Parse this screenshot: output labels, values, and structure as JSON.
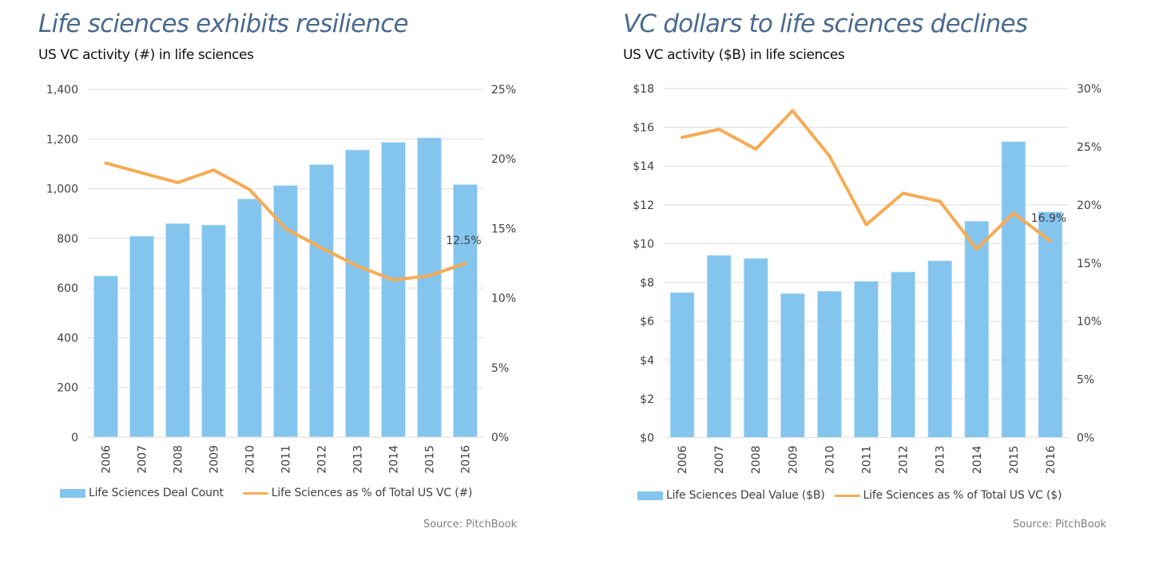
{
  "chart_data": [
    {
      "type": "bar+line",
      "title": "Life sciences exhibits resilience",
      "subtitle": "US VC activity (#) in life sciences",
      "categories": [
        "2006",
        "2007",
        "2008",
        "2009",
        "2010",
        "2011",
        "2012",
        "2013",
        "2014",
        "2015",
        "2016"
      ],
      "series": [
        {
          "name": "Life Sciences Deal Count",
          "type": "bar",
          "axis": "left",
          "color": "#84c5ed",
          "values": [
            649,
            809,
            860,
            854,
            959,
            1013,
            1097,
            1156,
            1187,
            1205,
            1017
          ]
        },
        {
          "name": "Life Sciences as % of Total US VC (#)",
          "type": "line",
          "axis": "right",
          "color": "#f6ab55",
          "values": [
            19.7,
            19.0,
            18.3,
            19.2,
            17.8,
            15.0,
            13.6,
            12.3,
            11.3,
            11.6,
            12.5
          ]
        }
      ],
      "left_axis": {
        "min": 0,
        "max": 1400,
        "ticks": [
          0,
          200,
          400,
          600,
          800,
          1000,
          1200,
          1400
        ],
        "tick_labels": [
          "0",
          "200",
          "400",
          "600",
          "800",
          "1,000",
          "1,200",
          "1,400"
        ]
      },
      "right_axis": {
        "min": 0,
        "max": 25,
        "ticks": [
          0,
          5,
          10,
          15,
          20,
          25
        ],
        "tick_labels": [
          "0%",
          "5%",
          "10%",
          "15%",
          "20%",
          "25%"
        ]
      },
      "annotation": {
        "label": "12.5%",
        "category": "2016",
        "series": 1
      },
      "grid": true,
      "legend_position": "bottom",
      "source": "Source: PitchBook"
    },
    {
      "type": "bar+line",
      "title": "VC dollars to life sciences declines",
      "subtitle": "US VC activity ($B) in life sciences",
      "categories": [
        "2006",
        "2007",
        "2008",
        "2009",
        "2010",
        "2011",
        "2012",
        "2013",
        "2014",
        "2015",
        "2016"
      ],
      "series": [
        {
          "name": "Life Sciences Deal Value ($B)",
          "type": "bar",
          "axis": "left",
          "color": "#84c5ed",
          "values": [
            7.48,
            9.4,
            9.24,
            7.43,
            7.55,
            8.06,
            8.54,
            9.12,
            11.16,
            15.26,
            11.64
          ]
        },
        {
          "name": "Life Sciences as % of Total US VC ($)",
          "type": "line",
          "axis": "right",
          "color": "#f6ab55",
          "values": [
            25.8,
            26.5,
            24.8,
            28.1,
            24.2,
            18.3,
            21.0,
            20.3,
            16.2,
            19.3,
            16.9
          ]
        }
      ],
      "left_axis": {
        "min": 0,
        "max": 18,
        "ticks": [
          0,
          2,
          4,
          6,
          8,
          10,
          12,
          14,
          16,
          18
        ],
        "tick_labels": [
          "$0",
          "$2",
          "$4",
          "$6",
          "$8",
          "$10",
          "$12",
          "$14",
          "$16",
          "$18"
        ]
      },
      "right_axis": {
        "min": 0,
        "max": 30,
        "ticks": [
          0,
          5,
          10,
          15,
          20,
          25,
          30
        ],
        "tick_labels": [
          "0%",
          "5%",
          "10%",
          "15%",
          "20%",
          "25%",
          "30%"
        ]
      },
      "annotation": {
        "label": "16.9%",
        "category": "2016",
        "series": 1
      },
      "grid": true,
      "legend_position": "bottom",
      "source": "Source: PitchBook"
    }
  ]
}
